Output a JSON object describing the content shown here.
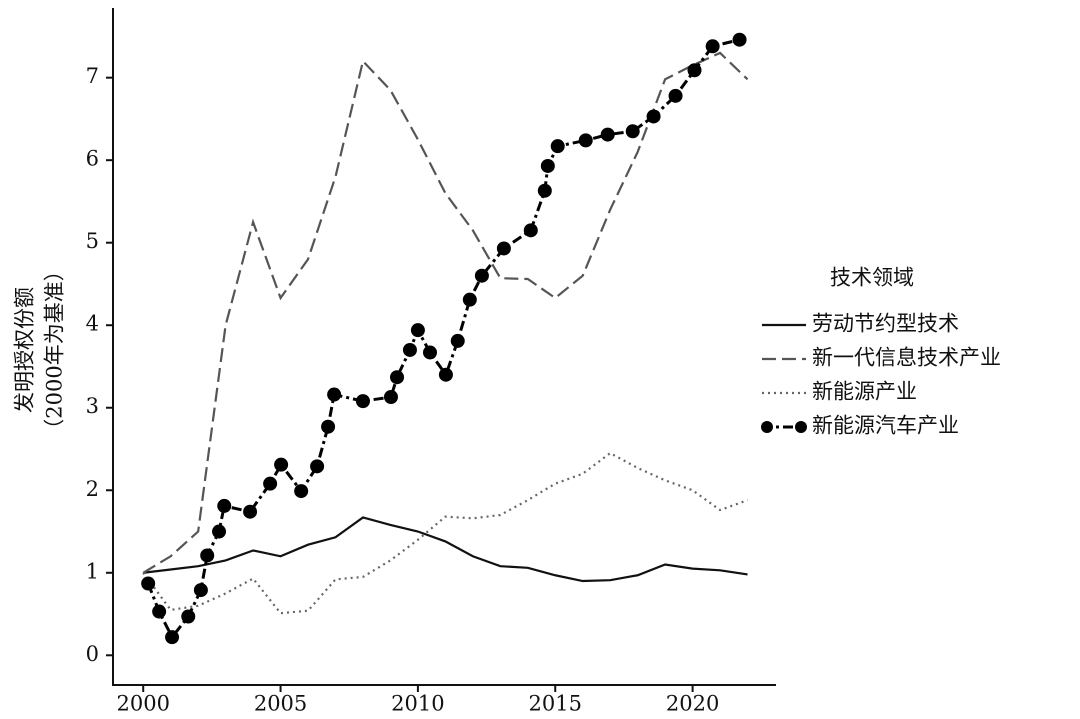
{
  "chart_data": {
    "type": "line",
    "y_label": [
      "发明授权份额",
      "（2000年为基准）"
    ],
    "legend_title": "技术领域",
    "legend_position": "right",
    "xlim": [
      1998.9,
      2023
    ],
    "ylim": [
      -0.36,
      7.82
    ],
    "xticks": [
      2000,
      2005,
      2010,
      2015,
      2020
    ],
    "yticks": [
      0,
      1,
      2,
      3,
      4,
      5,
      6,
      7
    ],
    "grid": false,
    "series": [
      {
        "name": "劳动节约型技术",
        "color": "#111111",
        "dash": "solid",
        "x": [
          2000,
          2001,
          2002,
          2003,
          2004,
          2005,
          2006,
          2007,
          2008,
          2009,
          2010,
          2011,
          2012,
          2013,
          2014,
          2015,
          2016,
          2017,
          2018,
          2019,
          2020,
          2021,
          2022
        ],
        "values": [
          1.0,
          1.04,
          1.08,
          1.15,
          1.27,
          1.2,
          1.34,
          1.43,
          1.67,
          1.58,
          1.5,
          1.38,
          1.2,
          1.08,
          1.06,
          0.97,
          0.9,
          0.91,
          0.97,
          1.1,
          1.05,
          1.03,
          0.98
        ]
      },
      {
        "name": "新一代信息技术产业",
        "color": "#555555",
        "dash": "dashed",
        "x": [
          2000,
          2001,
          2002,
          2003,
          2004,
          2005,
          2006,
          2007,
          2008,
          2009,
          2010,
          2011,
          2012,
          2013,
          2014,
          2015,
          2016,
          2017,
          2018,
          2019,
          2020,
          2021,
          2022
        ],
        "values": [
          1.0,
          1.2,
          1.5,
          4.0,
          5.25,
          4.33,
          4.8,
          5.8,
          7.2,
          6.85,
          6.25,
          5.6,
          5.15,
          4.57,
          4.56,
          4.33,
          4.6,
          5.4,
          6.1,
          6.98,
          7.15,
          7.3,
          6.98
        ]
      },
      {
        "name": "新能源产业",
        "color": "#666666",
        "dash": "dotted",
        "x": [
          2000,
          2001,
          2002,
          2003,
          2004,
          2005,
          2006,
          2007,
          2008,
          2009,
          2010,
          2011,
          2012,
          2013,
          2014,
          2015,
          2016,
          2017,
          2018,
          2019,
          2020,
          2021,
          2022
        ],
        "values": [
          1.0,
          0.55,
          0.6,
          0.75,
          0.93,
          0.51,
          0.54,
          0.92,
          0.95,
          1.15,
          1.4,
          1.68,
          1.66,
          1.7,
          1.88,
          2.08,
          2.2,
          2.45,
          2.27,
          2.12,
          2.0,
          1.76,
          1.88
        ]
      },
      {
        "name": "新能源汽车产业",
        "color": "#000000",
        "dash": "dashdot",
        "marker": "circle",
        "x": [
          2000.18,
          2000.58,
          2001.05,
          2001.64,
          2002.1,
          2002.33,
          2002.76,
          2002.95,
          2003.89,
          2004.62,
          2005.02,
          2005.75,
          2006.33,
          2006.73,
          2006.95,
          2008.0,
          2009.02,
          2009.24,
          2009.71,
          2010.0,
          2010.44,
          2011.02,
          2011.45,
          2011.89,
          2012.33,
          2013.13,
          2014.11,
          2014.62,
          2014.73,
          2015.09,
          2016.11,
          2016.91,
          2017.82,
          2018.58,
          2019.38,
          2020.07,
          2020.73,
          2021.71
        ],
        "values": [
          0.87,
          0.53,
          0.22,
          0.47,
          0.79,
          1.21,
          1.5,
          1.81,
          1.74,
          2.08,
          2.31,
          1.99,
          2.29,
          2.77,
          3.16,
          3.08,
          3.13,
          3.37,
          3.7,
          3.94,
          3.67,
          3.4,
          3.81,
          4.31,
          4.6,
          4.93,
          5.15,
          5.63,
          5.93,
          6.17,
          6.24,
          6.31,
          6.35,
          6.53,
          6.78,
          7.09,
          7.38,
          7.46
        ]
      }
    ]
  }
}
